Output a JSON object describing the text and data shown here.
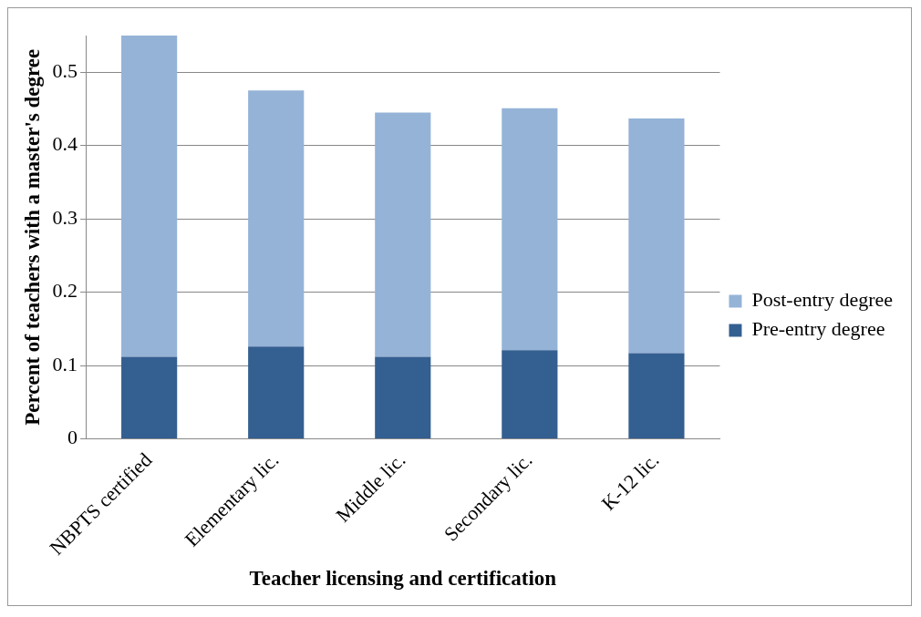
{
  "chart_data": {
    "type": "bar",
    "stacked": true,
    "xlabel": "Teacher licensing and certification",
    "ylabel": "Percent of teachers with a master's degree",
    "categories": [
      "NBPTS certified",
      "Elementary lic.",
      "Middle lic.",
      "Secondary lic.",
      "K-12 lic."
    ],
    "series": [
      {
        "name": "Pre-entry degree",
        "color": "#345f91",
        "values": [
          0.112,
          0.126,
          0.112,
          0.121,
          0.117
        ]
      },
      {
        "name": "Post-entry degree",
        "color": "#95b3d7",
        "values": [
          0.438,
          0.349,
          0.333,
          0.33,
          0.32
        ]
      }
    ],
    "ylim": [
      0,
      0.55
    ],
    "yticks": [
      0,
      0.1,
      0.2,
      0.3,
      0.4,
      0.5
    ],
    "grid": "y",
    "legend": "right"
  }
}
